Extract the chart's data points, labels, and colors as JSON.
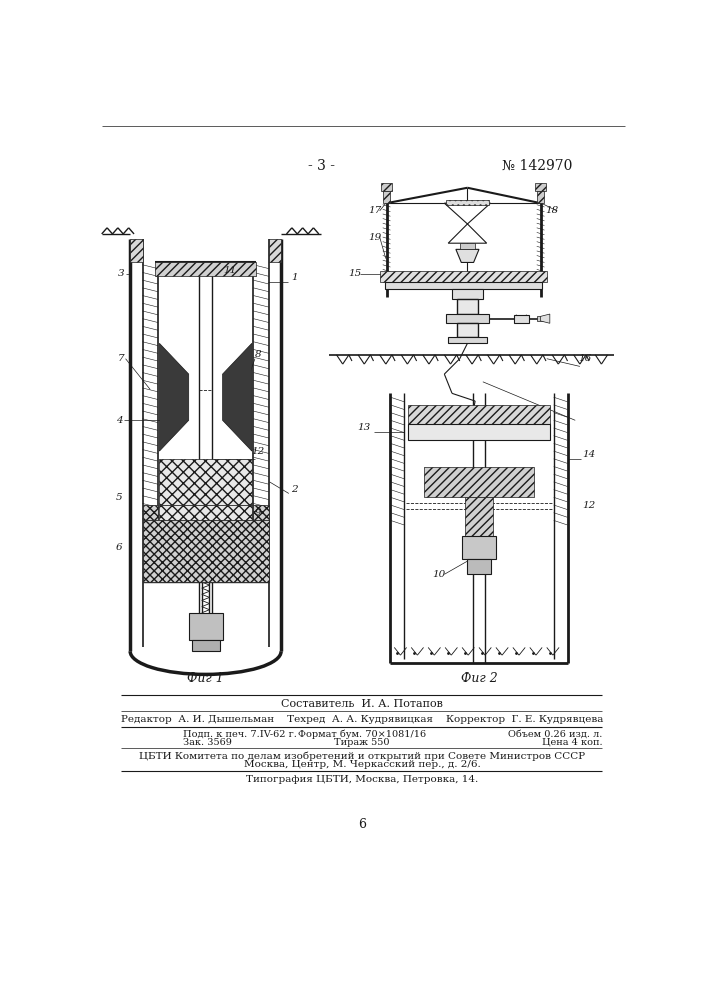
{
  "page_number": "- 3 -",
  "patent_number": "№ 142970",
  "fig1_label": "Фиг 1",
  "fig2_label": "Фиг 2",
  "composer_line": "Составитель  И. А. Потапов",
  "editor_line": "Редактор  А. И. Дышельман    Техред  А. А. Кудрявицкая    Корректор  Г. Е. Кудрявцева",
  "footer_line1_col1": "Подп. к печ. 7.IV-62 г.",
  "footer_line1_col2": "Формат бум. 70×1081/16",
  "footer_line1_col3": "Объем 0.26 изд. л.",
  "footer_line2_col1": "Зак. 3569",
  "footer_line2_col2": "Тираж 550",
  "footer_line2_col3": "Цена 4 коп.",
  "footer_line3": "ЦБТИ Комитета по делам изобретений и открытий при Совете Министров СССР",
  "footer_line4": "Москва, Центр, М. Черкасский пер., д. 2/6.",
  "footer_line5": "Типография ЦБТИ, Москва, Петровка, 14.",
  "page_num_bottom": "6",
  "bg_color": "#ffffff",
  "line_color": "#1a1a1a",
  "text_color": "#1a1a1a",
  "hatch_color": "#333333"
}
